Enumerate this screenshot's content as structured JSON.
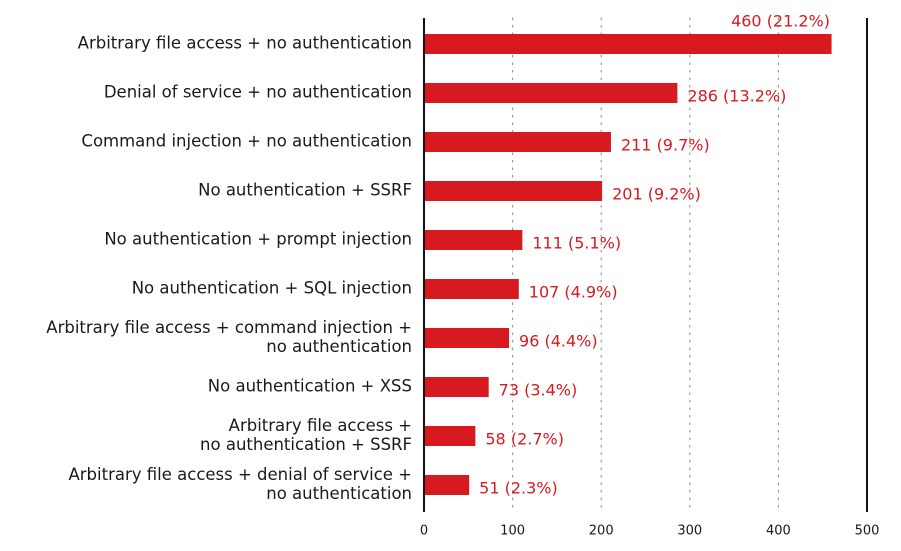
{
  "chart_data": {
    "type": "bar",
    "orientation": "horizontal",
    "categories": [
      [
        "Arbitrary file access + no authentication"
      ],
      [
        "Denial of service + no authentication"
      ],
      [
        "Command injection + no authentication"
      ],
      [
        "No authentication + SSRF"
      ],
      [
        "No authentication + prompt injection"
      ],
      [
        "No authentication + SQL injection"
      ],
      [
        "Arbitrary file access + command injection +",
        "no authentication"
      ],
      [
        "No authentication + XSS"
      ],
      [
        "Arbitrary file access +",
        "no authentication + SSRF"
      ],
      [
        "Arbitrary file access + denial of service +",
        "no authentication"
      ]
    ],
    "values": [
      460,
      286,
      211,
      201,
      111,
      107,
      96,
      73,
      58,
      51
    ],
    "value_labels": [
      "460 (21.2%)",
      "286 (13.2%)",
      "211 (9.7%)",
      "201 (9.2%)",
      "111 (5.1%)",
      "107 (4.9%)",
      "96 (4.4%)",
      "73 (3.4%)",
      "58 (2.7%)",
      "51 (2.3%)"
    ],
    "xticks": [
      0,
      100,
      200,
      300,
      400,
      500
    ],
    "xlim": [
      0,
      500
    ],
    "grid": "vertical dotted",
    "title": "",
    "xlabel": "",
    "ylabel": "",
    "bar_color": "#d71920",
    "label_color": "#d71920"
  }
}
